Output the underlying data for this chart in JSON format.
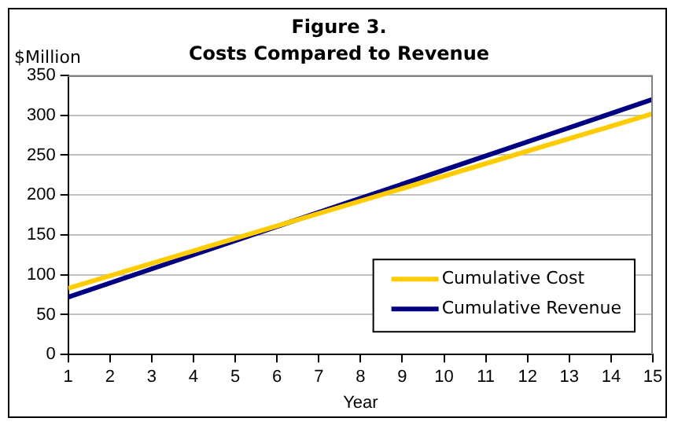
{
  "chart_data": {
    "type": "line",
    "title": "Figure 3.",
    "subtitle": "Costs Compared to Revenue",
    "xlabel": "Year",
    "ylabel": "$Million",
    "x": [
      1,
      15
    ],
    "series": [
      {
        "name": "Cumulative Cost",
        "color": "#ffcc00",
        "values": [
          83,
          302
        ]
      },
      {
        "name": "Cumulative Revenue",
        "color": "#000080",
        "values": [
          72,
          320
        ]
      }
    ],
    "xlim": [
      1,
      15
    ],
    "xticks": [
      1,
      2,
      3,
      4,
      5,
      6,
      7,
      8,
      9,
      10,
      11,
      12,
      13,
      14,
      15
    ],
    "ylim": [
      0,
      350
    ],
    "yticks": [
      0,
      50,
      100,
      150,
      200,
      250,
      300,
      350
    ],
    "grid": "y",
    "legend": "bottom right",
    "marker": "none",
    "line_style": "solid"
  }
}
